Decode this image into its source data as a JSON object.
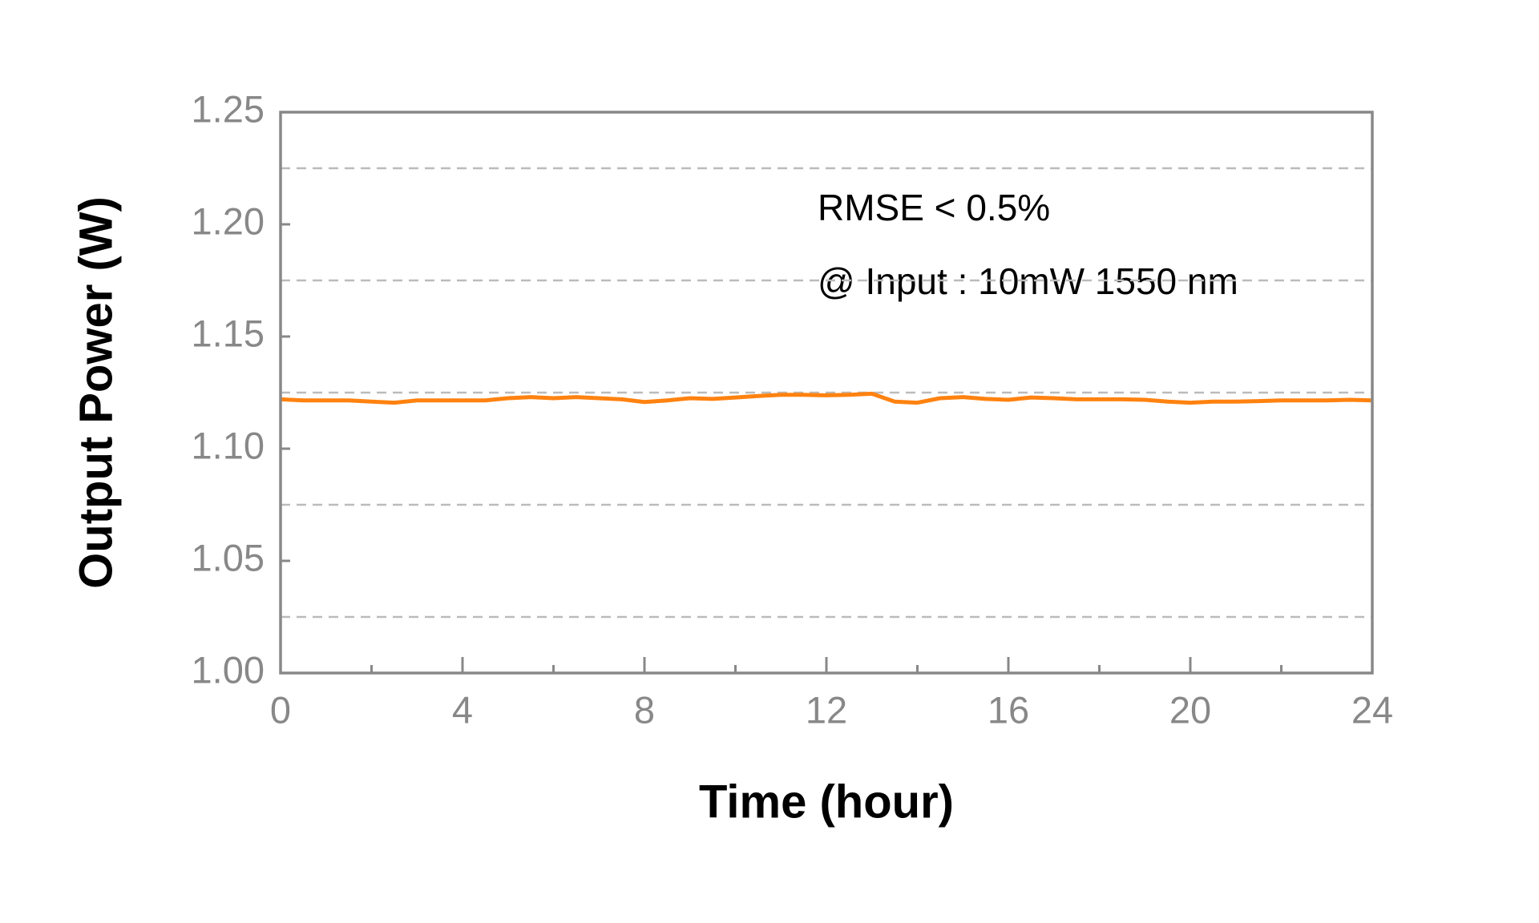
{
  "chart_data": {
    "type": "line",
    "x_label": "Time (hour)",
    "y_label": "Output Power (W)",
    "annotations": [
      "RMSE < 0.5%",
      "@ Input : 10mW 1550 nm"
    ],
    "xlim": [
      0,
      24
    ],
    "xticks": [
      0,
      4,
      8,
      12,
      16,
      20,
      24
    ],
    "minor_xticks": [
      2,
      6,
      10,
      14,
      18,
      22
    ],
    "ylim": [
      1.0,
      1.25
    ],
    "yticks": [
      {
        "value": 1.0,
        "label": "1.00"
      },
      1.05,
      {
        "value": 1.1,
        "label": "1.10"
      },
      1.15,
      {
        "value": 1.2,
        "label": "1.20"
      },
      1.25
    ],
    "grid_lines": [
      1.025,
      1.075,
      1.125,
      1.175,
      1.225
    ],
    "series": [
      {
        "color": "#ff8210",
        "x": [
          0,
          0.5,
          1,
          1.5,
          2,
          2.5,
          3,
          3.5,
          4,
          4.5,
          5,
          5.5,
          6,
          6.5,
          7,
          7.5,
          8,
          8.5,
          9,
          9.5,
          10,
          10.5,
          11,
          11.5,
          12,
          12.5,
          13,
          13.5,
          14,
          14.5,
          15,
          15.5,
          16,
          16.5,
          17,
          17.5,
          18,
          18.5,
          19,
          19.5,
          20,
          20.5,
          21,
          21.5,
          22,
          22.5,
          23,
          23.5,
          24
        ],
        "values": [
          1.122,
          1.1215,
          1.1215,
          1.1215,
          1.121,
          1.1205,
          1.1215,
          1.1215,
          1.1215,
          1.1215,
          1.1225,
          1.123,
          1.1225,
          1.123,
          1.1225,
          1.122,
          1.1208,
          1.1215,
          1.1225,
          1.1222,
          1.1228,
          1.1235,
          1.124,
          1.124,
          1.1238,
          1.124,
          1.1245,
          1.121,
          1.1205,
          1.1225,
          1.123,
          1.1222,
          1.1218,
          1.1228,
          1.1225,
          1.122,
          1.122,
          1.122,
          1.1218,
          1.121,
          1.1205,
          1.121,
          1.121,
          1.1212,
          1.1215,
          1.1215,
          1.1215,
          1.1218,
          1.1215
        ]
      }
    ]
  }
}
